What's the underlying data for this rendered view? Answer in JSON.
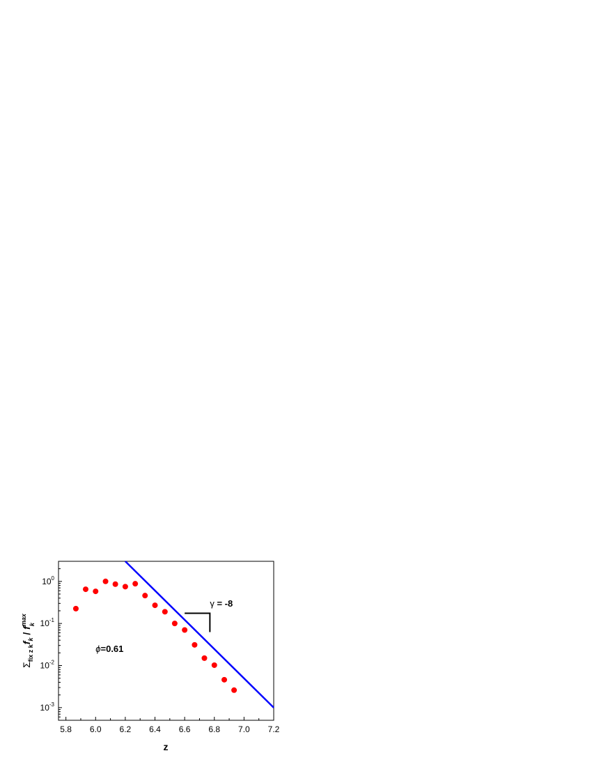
{
  "chart_data": {
    "type": "scatter",
    "xlabel": "z",
    "ylabel": {
      "sum": "Σ",
      "sum_sub": "fix z k",
      "f1": "f",
      "f1_sub": "k",
      "slash": " / ",
      "f2": "f",
      "f2_sub": "k",
      "f2_sup": "max"
    },
    "x_scale": "linear",
    "y_scale": "log",
    "xlim": [
      5.75,
      7.2
    ],
    "ylim": [
      0.0005,
      3
    ],
    "x_ticks": [
      {
        "value": 5.8,
        "label": "5.8"
      },
      {
        "value": 6.0,
        "label": "6.0"
      },
      {
        "value": 6.2,
        "label": "6.2"
      },
      {
        "value": 6.4,
        "label": "6.4"
      },
      {
        "value": 6.6,
        "label": "6.6"
      },
      {
        "value": 6.8,
        "label": "6.8"
      },
      {
        "value": 7.0,
        "label": "7.0"
      },
      {
        "value": 7.2,
        "label": "7.2"
      }
    ],
    "y_ticks": [
      {
        "value": 0.001,
        "base": "10",
        "exp": "-3"
      },
      {
        "value": 0.01,
        "base": "10",
        "exp": "-2"
      },
      {
        "value": 0.1,
        "base": "10",
        "exp": "-1"
      },
      {
        "value": 1,
        "base": "10",
        "exp": "0"
      }
    ],
    "grid": false,
    "series": [
      {
        "kind": "points",
        "color": "#ff0000",
        "points": [
          {
            "x": 5.867,
            "y": 0.225
          },
          {
            "x": 5.933,
            "y": 0.65
          },
          {
            "x": 6.0,
            "y": 0.58
          },
          {
            "x": 6.067,
            "y": 1.0
          },
          {
            "x": 6.133,
            "y": 0.86
          },
          {
            "x": 6.2,
            "y": 0.75
          },
          {
            "x": 6.267,
            "y": 0.88
          },
          {
            "x": 6.333,
            "y": 0.46
          },
          {
            "x": 6.4,
            "y": 0.27
          },
          {
            "x": 6.467,
            "y": 0.19
          },
          {
            "x": 6.533,
            "y": 0.1
          },
          {
            "x": 6.6,
            "y": 0.07
          },
          {
            "x": 6.667,
            "y": 0.031
          },
          {
            "x": 6.733,
            "y": 0.015
          },
          {
            "x": 6.8,
            "y": 0.0102
          },
          {
            "x": 6.867,
            "y": 0.0046
          },
          {
            "x": 6.933,
            "y": 0.0026
          }
        ]
      },
      {
        "kind": "line",
        "color": "#0000ff",
        "points": [
          {
            "x": 6.2,
            "y": 3.0
          },
          {
            "x": 7.2,
            "y": 0.001
          }
        ]
      }
    ],
    "annotations": [
      {
        "id": "slope",
        "symbol": "γ",
        "text": " = -8",
        "x": 6.77,
        "y": 0.25
      },
      {
        "id": "phi",
        "symbol": "ϕ",
        "text": "=0.61",
        "x": 6.0,
        "y": 0.021
      }
    ],
    "slope_marker": {
      "corner": {
        "x": 6.77,
        "y": 0.175
      },
      "left": {
        "x": 6.6,
        "y": 0.175
      },
      "bottom": {
        "x": 6.77,
        "y": 0.0625
      }
    }
  }
}
